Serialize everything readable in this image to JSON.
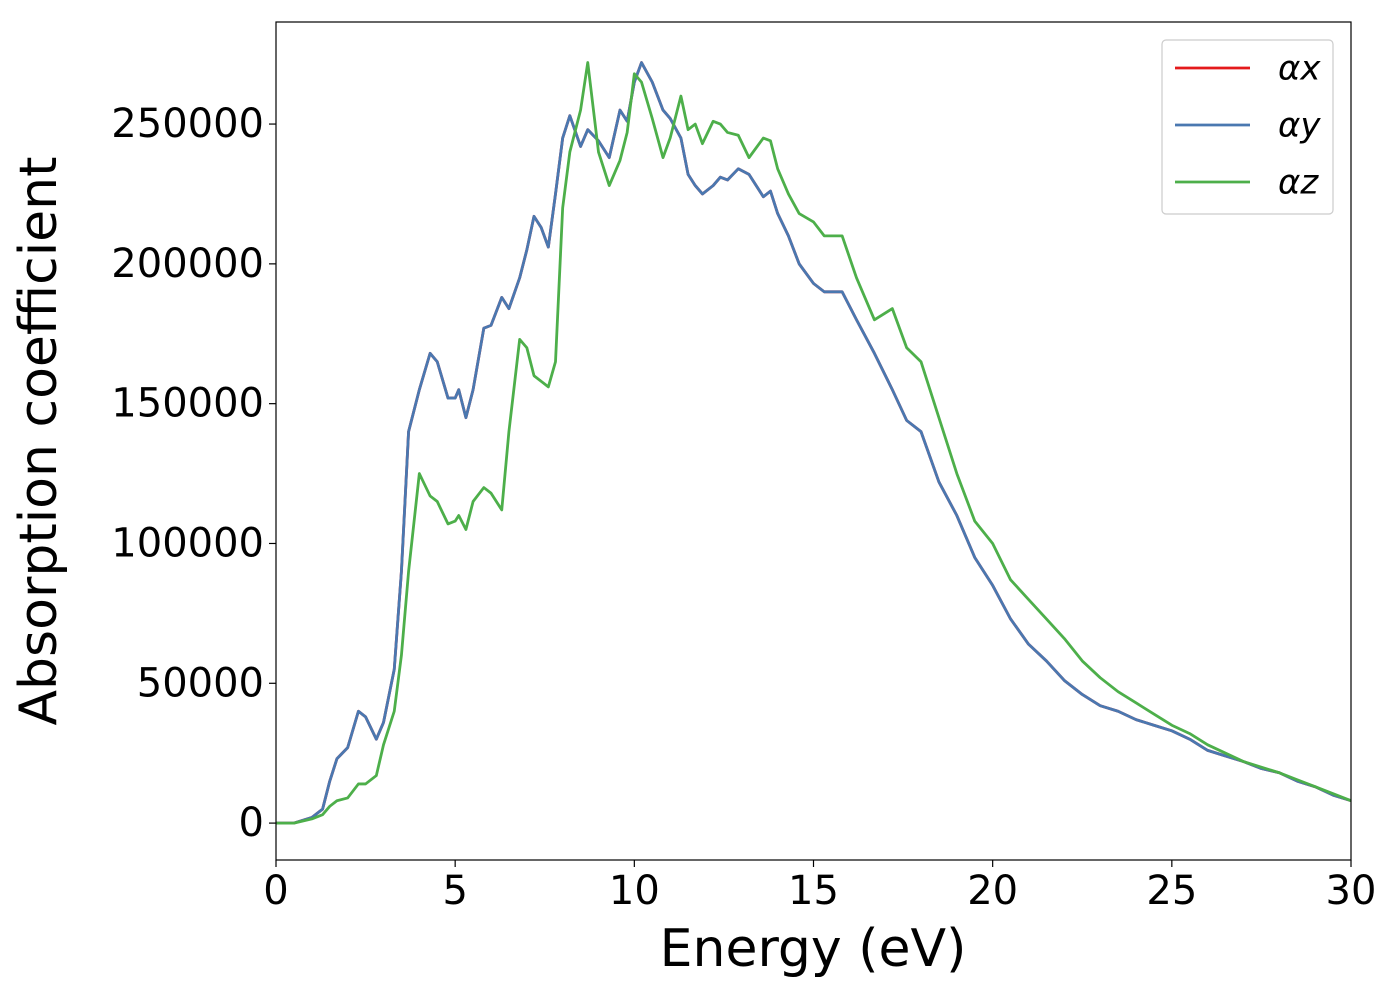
{
  "chart_data": {
    "type": "line",
    "xlabel": "Energy (eV)",
    "ylabel": "Absorption coefficient",
    "xlim": [
      0,
      30
    ],
    "ylim": [
      -13200,
      286500
    ],
    "xticks": [
      0,
      5,
      10,
      15,
      20,
      25,
      30
    ],
    "yticks": [
      0,
      50000,
      100000,
      150000,
      200000,
      250000
    ],
    "legend": "upper right",
    "grid": false,
    "x": [
      0,
      0.5,
      1,
      1.3,
      1.5,
      1.7,
      2,
      2.3,
      2.5,
      2.8,
      3,
      3.3,
      3.5,
      3.7,
      4,
      4.3,
      4.5,
      4.8,
      5,
      5.1,
      5.3,
      5.5,
      5.8,
      6,
      6.3,
      6.5,
      6.8,
      7,
      7.2,
      7.4,
      7.6,
      7.8,
      8,
      8.2,
      8.5,
      8.7,
      9,
      9.3,
      9.6,
      9.8,
      10,
      10.2,
      10.5,
      10.8,
      11,
      11.3,
      11.5,
      11.7,
      11.9,
      12.2,
      12.4,
      12.6,
      12.9,
      13.2,
      13.6,
      13.8,
      14,
      14.3,
      14.6,
      15,
      15.3,
      15.8,
      16.2,
      16.7,
      17.2,
      17.6,
      18,
      18.5,
      19,
      19.5,
      20,
      20.5,
      21,
      21.5,
      22,
      22.5,
      23,
      23.5,
      24,
      24.5,
      25,
      25.5,
      26,
      26.5,
      27,
      27.5,
      28,
      28.5,
      29,
      29.5,
      30
    ],
    "series": [
      {
        "name": "αx",
        "color": "#e41a1c",
        "values": [
          0,
          0,
          2000,
          5000,
          15000,
          23000,
          27000,
          40000,
          38000,
          30000,
          36000,
          55000,
          90000,
          140000,
          155000,
          168000,
          165000,
          152000,
          152000,
          155000,
          145000,
          155000,
          177000,
          178000,
          188000,
          184000,
          195000,
          205000,
          217000,
          213000,
          206000,
          225000,
          245000,
          253000,
          242000,
          248000,
          244000,
          238000,
          255000,
          251000,
          265000,
          272000,
          265000,
          255000,
          252000,
          245000,
          232000,
          228000,
          225000,
          228000,
          231000,
          230000,
          234000,
          232000,
          224000,
          226000,
          218000,
          210000,
          200000,
          193000,
          190000,
          190000,
          180000,
          168000,
          155000,
          144000,
          140000,
          122000,
          110000,
          95000,
          85000,
          73000,
          64000,
          58000,
          51000,
          46000,
          42000,
          40000,
          37000,
          35000,
          33000,
          30000,
          26000,
          24000,
          22000,
          19500,
          18000,
          15000,
          13000,
          10000,
          8000
        ]
      },
      {
        "name": "αy",
        "color": "#4a78b0",
        "values": [
          0,
          0,
          2000,
          5000,
          15000,
          23000,
          27000,
          40000,
          38000,
          30000,
          36000,
          55000,
          90000,
          140000,
          155000,
          168000,
          165000,
          152000,
          152000,
          155000,
          145000,
          155000,
          177000,
          178000,
          188000,
          184000,
          195000,
          205000,
          217000,
          213000,
          206000,
          225000,
          245000,
          253000,
          242000,
          248000,
          244000,
          238000,
          255000,
          251000,
          265000,
          272000,
          265000,
          255000,
          252000,
          245000,
          232000,
          228000,
          225000,
          228000,
          231000,
          230000,
          234000,
          232000,
          224000,
          226000,
          218000,
          210000,
          200000,
          193000,
          190000,
          190000,
          180000,
          168000,
          155000,
          144000,
          140000,
          122000,
          110000,
          95000,
          85000,
          73000,
          64000,
          58000,
          51000,
          46000,
          42000,
          40000,
          37000,
          35000,
          33000,
          30000,
          26000,
          24000,
          22000,
          19500,
          18000,
          15000,
          13000,
          10000,
          8000
        ]
      },
      {
        "name": "αz",
        "color": "#4daf4a",
        "values": [
          0,
          0,
          1500,
          3000,
          6000,
          8000,
          9000,
          14000,
          14000,
          17000,
          28000,
          40000,
          60000,
          90000,
          125000,
          117000,
          115000,
          107000,
          108000,
          110000,
          105000,
          115000,
          120000,
          118000,
          112000,
          140000,
          173000,
          170000,
          160000,
          158000,
          156000,
          165000,
          220000,
          240000,
          255000,
          272000,
          240000,
          228000,
          237000,
          247000,
          268000,
          265000,
          252000,
          238000,
          245000,
          260000,
          248000,
          250000,
          243000,
          251000,
          250000,
          247000,
          246000,
          238000,
          245000,
          244000,
          234000,
          225000,
          218000,
          215000,
          210000,
          210000,
          195000,
          180000,
          184000,
          170000,
          165000,
          145000,
          125000,
          108000,
          100000,
          87000,
          80000,
          73000,
          66000,
          58000,
          52000,
          47000,
          43000,
          39000,
          35000,
          32000,
          28000,
          25000,
          22000,
          20000,
          18000,
          15500,
          13000,
          10500,
          8000
        ]
      }
    ]
  }
}
